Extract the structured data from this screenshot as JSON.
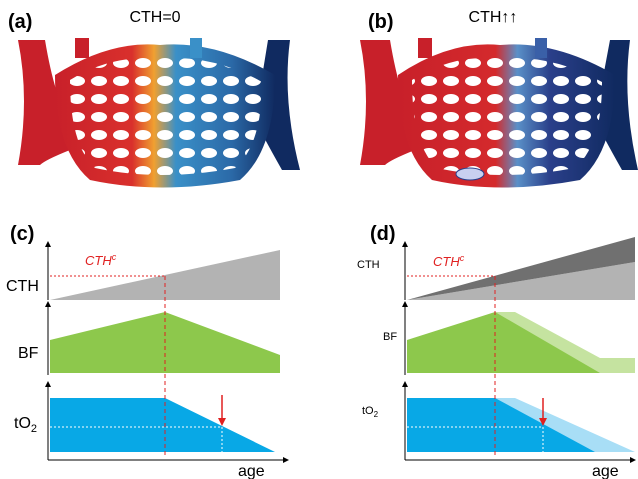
{
  "panels": [
    {
      "label": "(a)",
      "title": "CTH=0"
    },
    {
      "label": "(b)",
      "title": "CTH↑↑"
    },
    {
      "label": "(c)",
      "threshold": "CTH",
      "threshold_sup": "c",
      "rows": {
        "cth": "CTH",
        "bf": "BF",
        "to2": "tO",
        "to2_sub": "2"
      },
      "x_axis": "age"
    },
    {
      "label": "(d)",
      "threshold": "CTH",
      "threshold_sup": "c",
      "rows": {
        "cth": "CTH",
        "bf": "BF",
        "to2": "tO",
        "to2_sub": "2"
      },
      "x_axis": "age"
    }
  ]
}
